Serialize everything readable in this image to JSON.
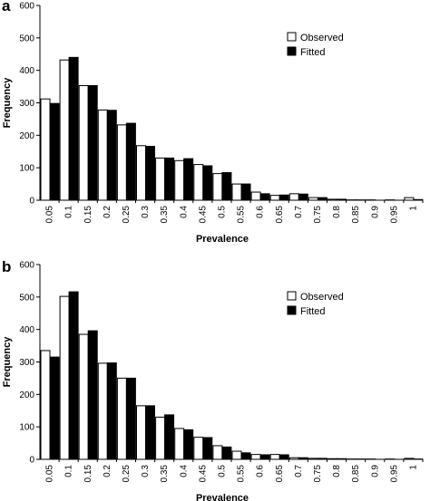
{
  "chart_data": [
    {
      "panel_label": "a",
      "type": "bar",
      "categories": [
        "0.05",
        "0.1",
        "0.15",
        "0.2",
        "0.25",
        "0.3",
        "0.35",
        "0.4",
        "0.45",
        "0.5",
        "0.55",
        "0.6",
        "0.65",
        "0.7",
        "0.75",
        "0.8",
        "0.85",
        "0.9",
        "0.95",
        "1"
      ],
      "series": [
        {
          "name": "Observed",
          "color": "#ffffff",
          "values": [
            312,
            432,
            353,
            278,
            232,
            168,
            130,
            122,
            110,
            82,
            50,
            25,
            15,
            20,
            8,
            3,
            1,
            1,
            1,
            8
          ]
        },
        {
          "name": "Fitted",
          "color": "#000000",
          "values": [
            298,
            440,
            353,
            277,
            237,
            166,
            130,
            128,
            106,
            85,
            50,
            20,
            16,
            19,
            8,
            3,
            1,
            0,
            0,
            2
          ]
        }
      ],
      "xlabel": "Prevalence",
      "ylabel": "Frequency",
      "ylim": [
        0,
        600
      ],
      "yticks": [
        0,
        100,
        200,
        300,
        400,
        500,
        600
      ],
      "legend_position": "top-right",
      "grid": false
    },
    {
      "panel_label": "b",
      "type": "bar",
      "categories": [
        "0.05",
        "0.1",
        "0.15",
        "0.2",
        "0.25",
        "0.3",
        "0.35",
        "0.4",
        "0.45",
        "0.5",
        "0.55",
        "0.6",
        "0.65",
        "0.7",
        "0.75",
        "0.8",
        "0.85",
        "0.9",
        "0.95",
        "1"
      ],
      "series": [
        {
          "name": "Observed",
          "color": "#ffffff",
          "values": [
            335,
            502,
            385,
            296,
            250,
            165,
            130,
            95,
            68,
            42,
            25,
            15,
            15,
            5,
            3,
            2,
            1,
            1,
            1,
            3
          ]
        },
        {
          "name": "Fitted",
          "color": "#000000",
          "values": [
            315,
            516,
            396,
            297,
            250,
            165,
            137,
            91,
            67,
            38,
            20,
            14,
            14,
            5,
            3,
            2,
            1,
            0,
            0,
            1
          ]
        }
      ],
      "xlabel": "Prevalence",
      "ylabel": "Frequency",
      "ylim": [
        0,
        600
      ],
      "yticks": [
        0,
        100,
        200,
        300,
        400,
        500,
        600
      ],
      "legend_position": "top-right",
      "grid": false
    }
  ]
}
